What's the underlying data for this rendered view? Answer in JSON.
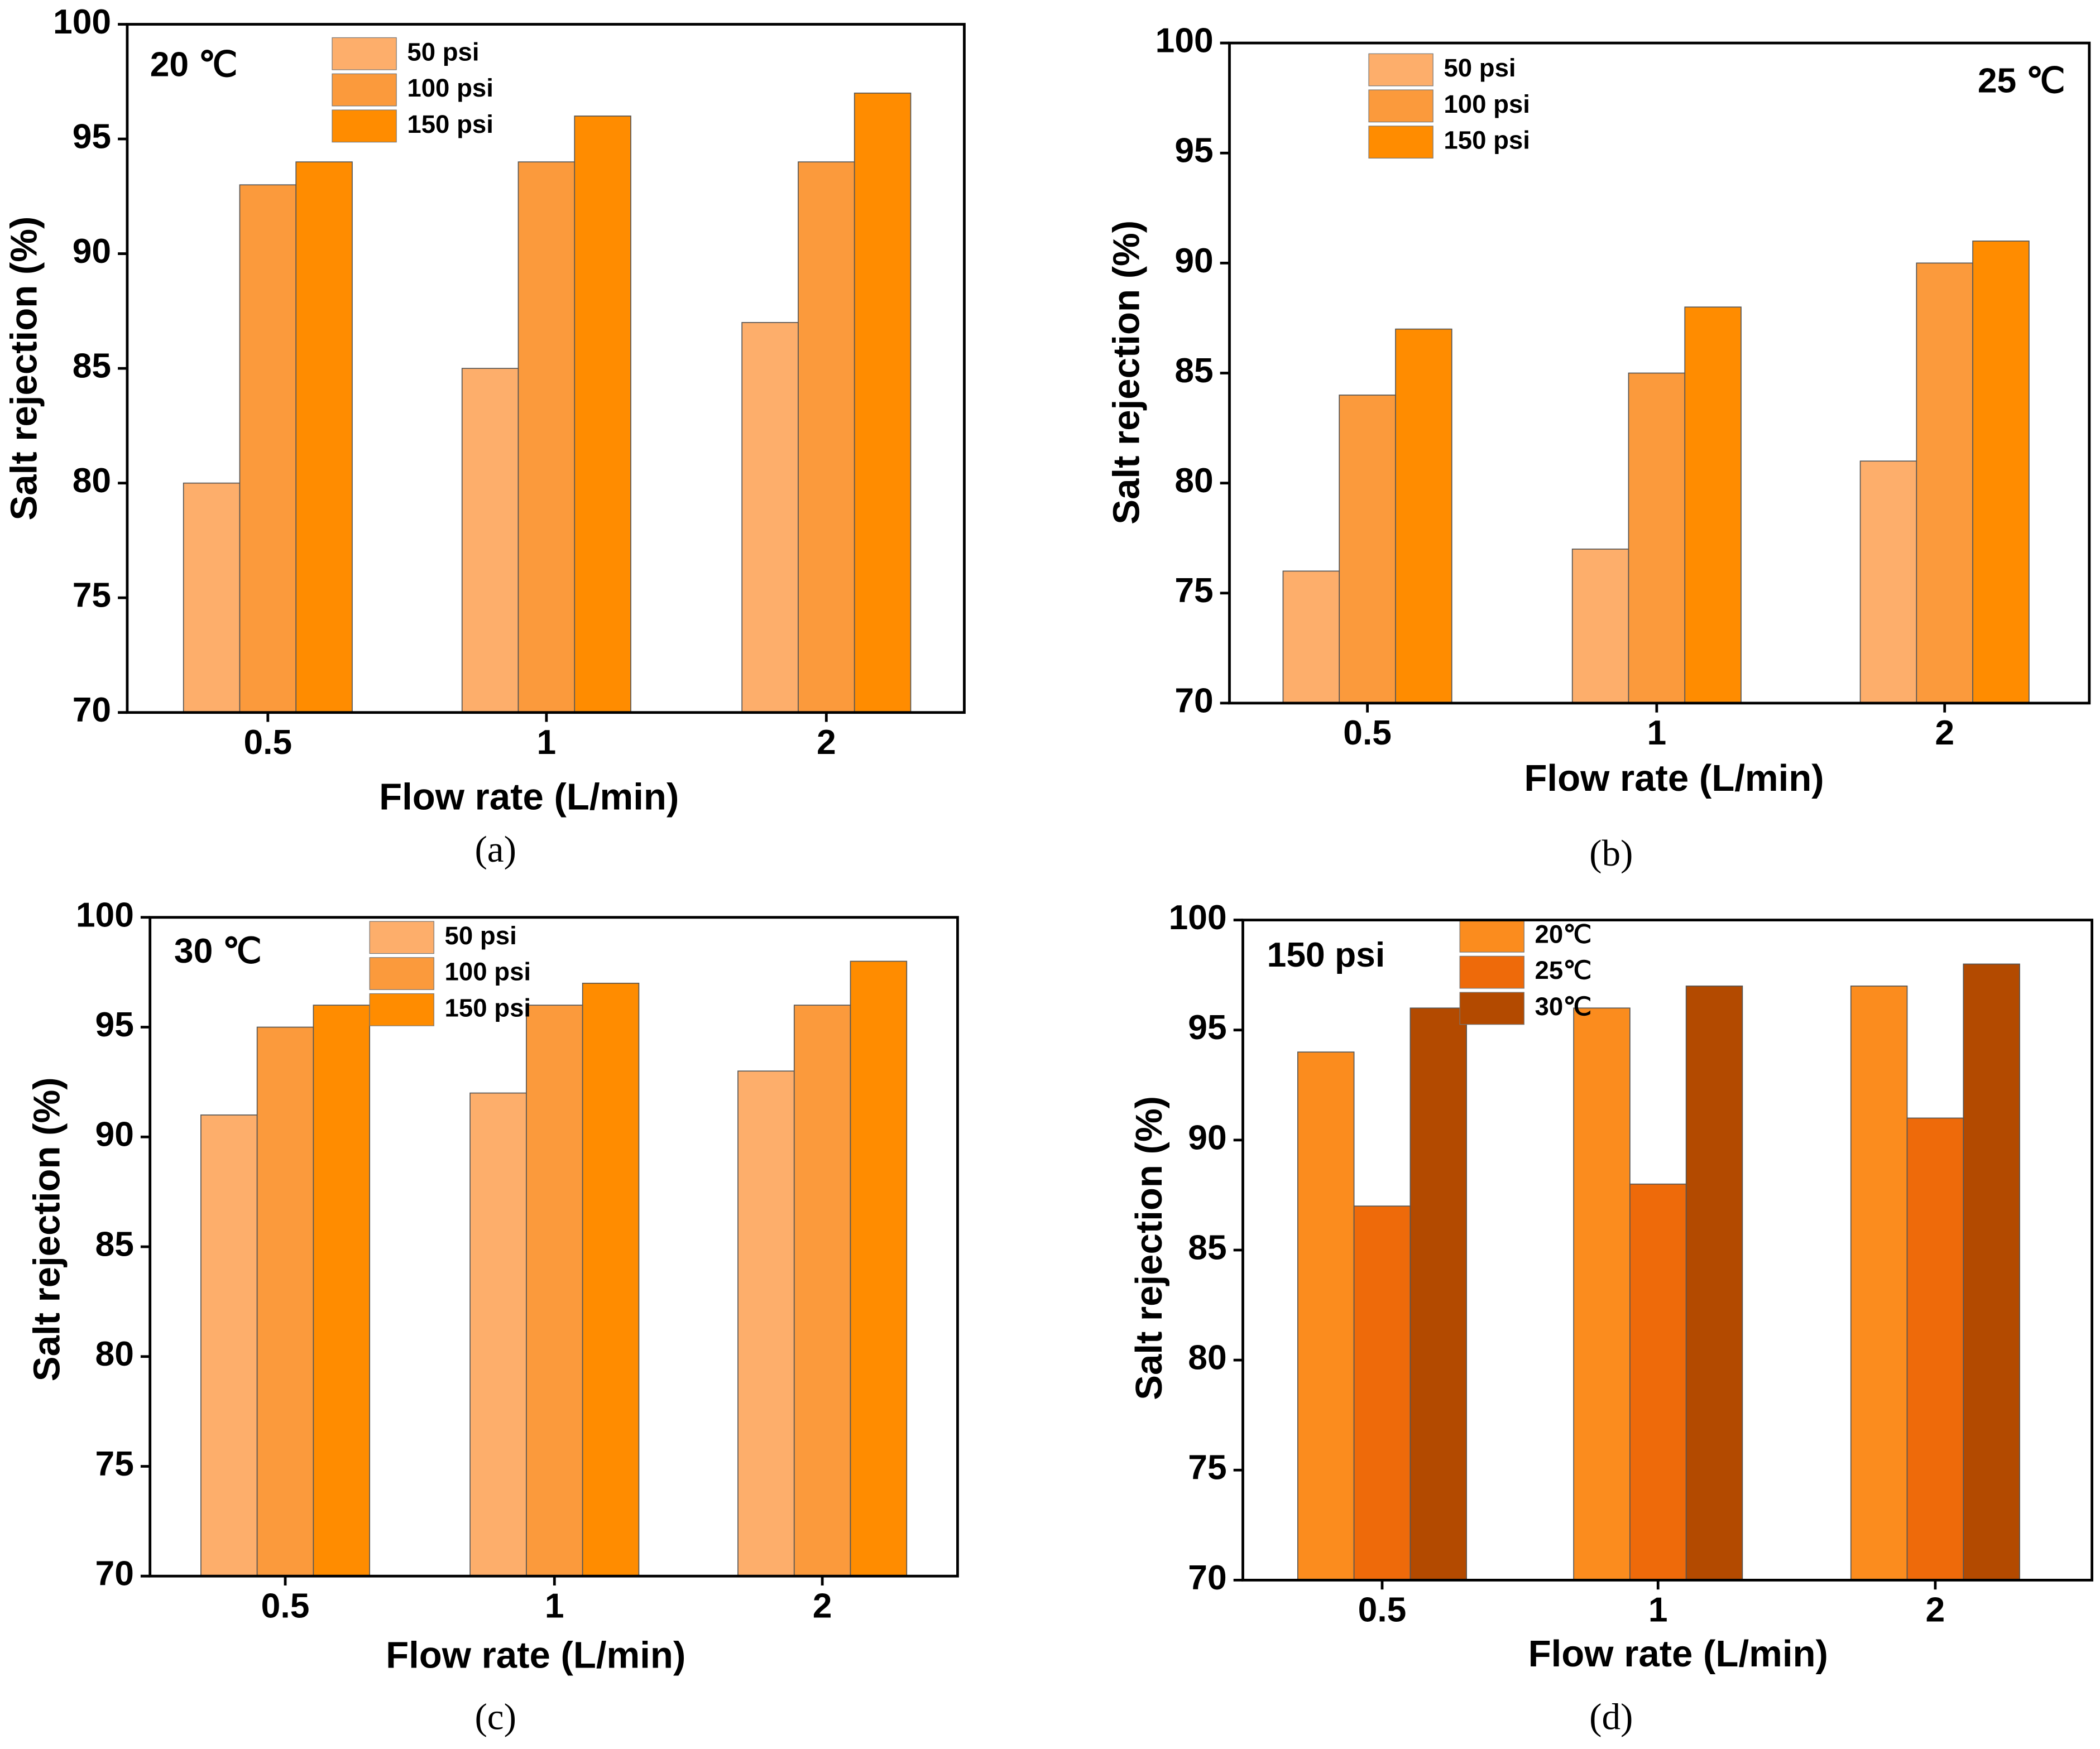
{
  "chart_data": [
    {
      "type": "bar",
      "annotation": "20 ℃",
      "caption": "(a)",
      "x_label": "Flow rate (L/min)",
      "y_label": "Salt rejection (%)",
      "categories": [
        "0.5",
        "1",
        "2"
      ],
      "ylim": [
        70,
        100
      ],
      "yticks": [
        70,
        75,
        80,
        85,
        90,
        95,
        100
      ],
      "series": [
        {
          "name": "50 psi",
          "color": "#fdae6b",
          "values": [
            80,
            85,
            87
          ]
        },
        {
          "name": "100 psi",
          "color": "#fb9a3c",
          "values": [
            93,
            94,
            94
          ]
        },
        {
          "name": "150 psi",
          "color": "#ff8c00",
          "values": [
            94,
            96,
            97
          ]
        }
      ]
    },
    {
      "type": "bar",
      "annotation": "25 ℃",
      "caption": "(b)",
      "x_label": "Flow rate (L/min)",
      "y_label": "Salt rejection (%)",
      "categories": [
        "0.5",
        "1",
        "2"
      ],
      "ylim": [
        70,
        100
      ],
      "yticks": [
        70,
        75,
        80,
        85,
        90,
        95,
        100
      ],
      "series": [
        {
          "name": "50 psi",
          "color": "#fdae6b",
          "values": [
            76,
            77,
            81
          ]
        },
        {
          "name": "100 psi",
          "color": "#fb9a3c",
          "values": [
            84,
            85,
            90
          ]
        },
        {
          "name": "150 psi",
          "color": "#ff8c00",
          "values": [
            87,
            88,
            91
          ]
        }
      ]
    },
    {
      "type": "bar",
      "annotation": "30 ℃",
      "caption": "(c)",
      "x_label": "Flow rate (L/min)",
      "y_label": "Salt rejection (%)",
      "categories": [
        "0.5",
        "1",
        "2"
      ],
      "ylim": [
        70,
        100
      ],
      "yticks": [
        70,
        75,
        80,
        85,
        90,
        95,
        100
      ],
      "series": [
        {
          "name": "50 psi",
          "color": "#fdae6b",
          "values": [
            91,
            92,
            93
          ]
        },
        {
          "name": "100 psi",
          "color": "#fb9a3c",
          "values": [
            95,
            96,
            96
          ]
        },
        {
          "name": "150 psi",
          "color": "#ff8c00",
          "values": [
            96,
            97,
            98
          ]
        }
      ]
    },
    {
      "type": "bar",
      "annotation": "150 psi",
      "caption": "(d)",
      "x_label": "Flow rate (L/min)",
      "y_label": "Salt rejection (%)",
      "categories": [
        "0.5",
        "1",
        "2"
      ],
      "ylim": [
        70,
        100
      ],
      "yticks": [
        70,
        75,
        80,
        85,
        90,
        95,
        100
      ],
      "series": [
        {
          "name": "20℃",
          "color": "#fb8c1e",
          "values": [
            94,
            96,
            97
          ]
        },
        {
          "name": "25℃",
          "color": "#ee6a0a",
          "values": [
            87,
            88,
            91
          ]
        },
        {
          "name": "30℃",
          "color": "#b34a00",
          "values": [
            96,
            97,
            98
          ]
        }
      ]
    }
  ]
}
